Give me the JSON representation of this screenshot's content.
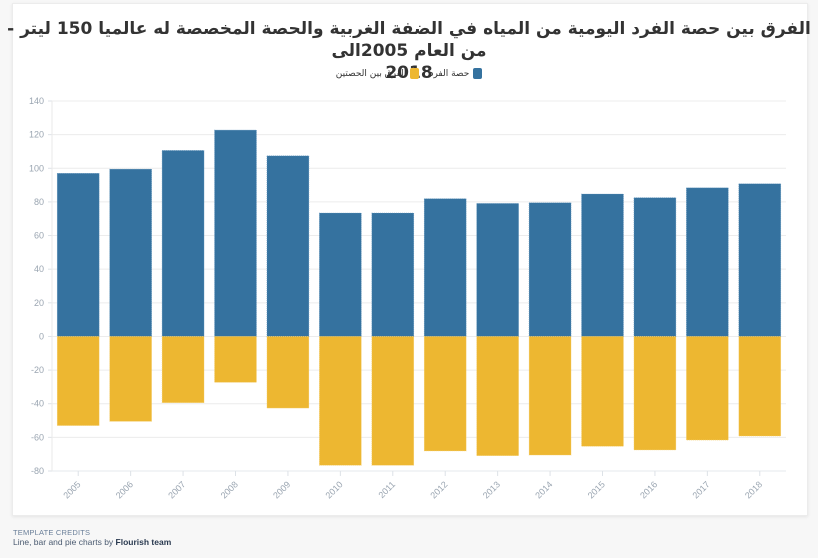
{
  "chart_data": {
    "type": "bar",
    "title_lines": [
      "الفرق بين حصة الفرد اليومية من المياه في الضفة الغربية والحصة المخصصة له عالميا 150 ليتر - من العام 2005الى",
      "2018"
    ],
    "categories": [
      "2005",
      "2006",
      "2007",
      "2008",
      "2009",
      "2010",
      "2011",
      "2012",
      "2013",
      "2014",
      "2015",
      "2016",
      "2017",
      "2018"
    ],
    "series": [
      {
        "name": "حصة الفرد",
        "color": "#35729f",
        "values": [
          97,
          99.5,
          110.6,
          122.7,
          107.4,
          73.4,
          73.4,
          81.9,
          79.1,
          79.5,
          84.7,
          82.5,
          88.4,
          90.8
        ]
      },
      {
        "name": "الفرق بين الحصتين",
        "color": "#edb731",
        "values": [
          -53,
          -50.5,
          -39.4,
          -27.3,
          -42.6,
          -76.6,
          -76.6,
          -68.1,
          -70.9,
          -70.5,
          -65.3,
          -67.5,
          -61.6,
          -59.2
        ]
      }
    ],
    "ylim": [
      -80,
      140
    ],
    "yticks": [
      140,
      120,
      100,
      80,
      60,
      40,
      20,
      0,
      -20,
      -40,
      -60,
      -80
    ],
    "xlabel": "",
    "ylabel": "",
    "grid": true,
    "legend_position": "top-center"
  },
  "legend": [
    {
      "label": "حصة الفرد",
      "color": "#35729f"
    },
    {
      "label": "الفرق بين الحصتين",
      "color": "#edb731"
    }
  ],
  "credits": {
    "heading": "Template credits",
    "text": "Line, bar and pie charts by ",
    "team": "Flourish team"
  }
}
